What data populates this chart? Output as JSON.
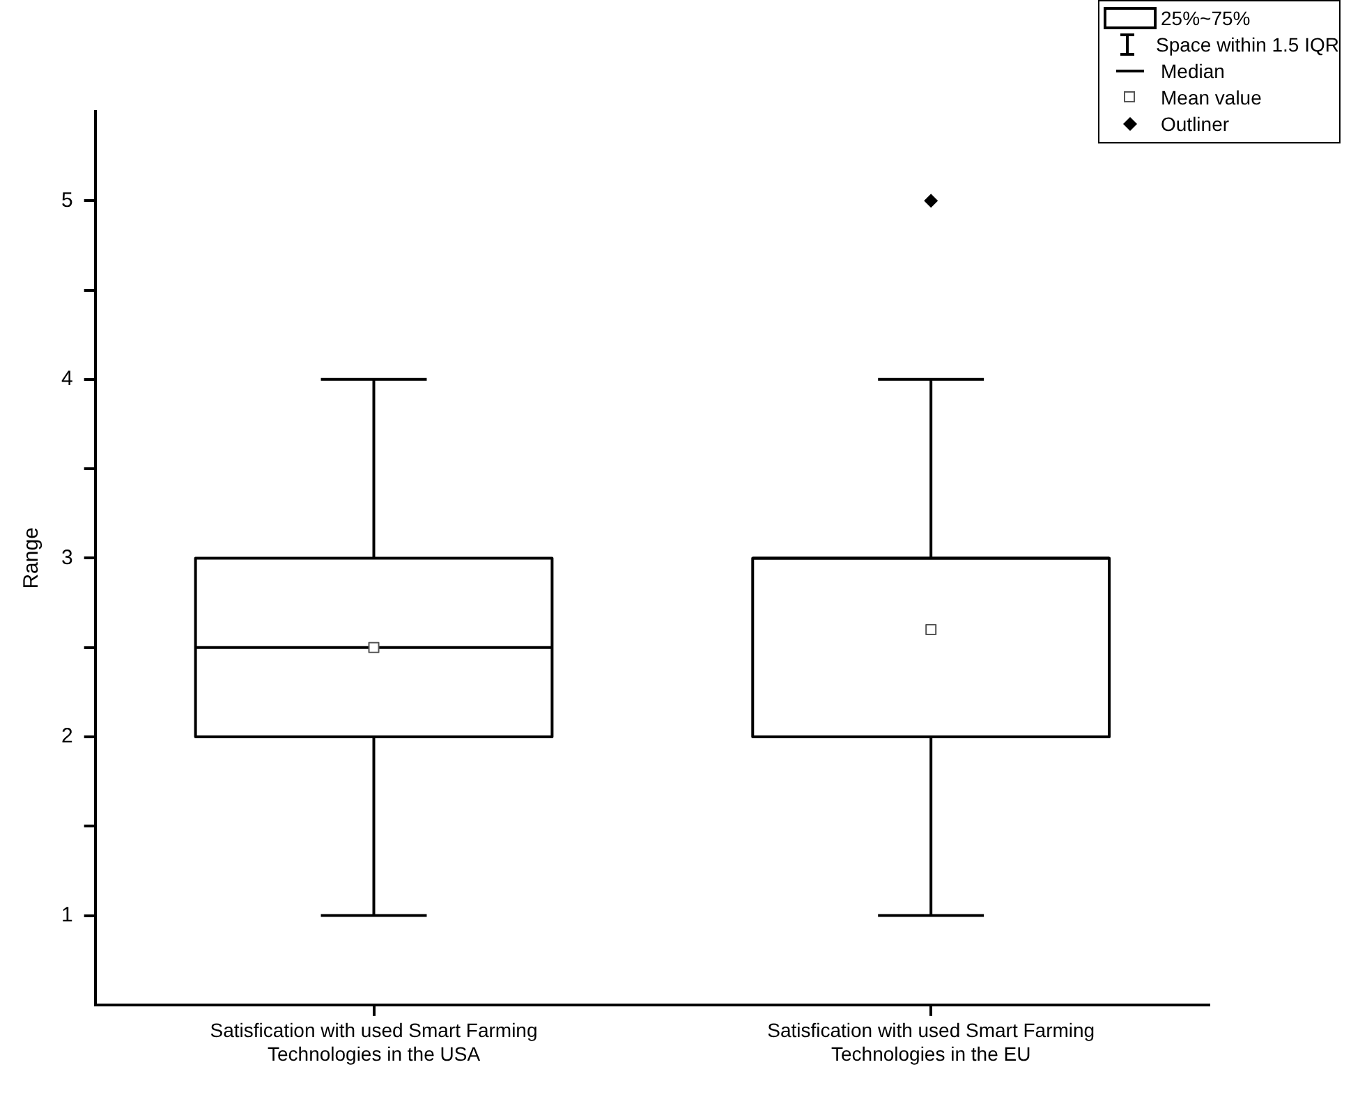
{
  "chart_data": {
    "type": "box",
    "ylabel": "Range",
    "categories": [
      "Satisfication with used Smart Farming Technologies in the USA",
      "Satisfication with used Smart Farming Technologies in the EU"
    ],
    "boxes": [
      {
        "low": 1,
        "q1": 2,
        "median": 2.5,
        "q3": 3,
        "high": 4,
        "mean": 2.5
      },
      {
        "low": 1,
        "q1": 2,
        "median": 3,
        "q3": 3,
        "high": 4,
        "mean": 2.6,
        "outliers": [
          5
        ]
      }
    ],
    "ylim": [
      0.5,
      5.5
    ],
    "yticks": [
      1,
      {
        "value": 1.5,
        "label": null
      },
      2,
      {
        "value": 2.5,
        "label": null
      },
      3,
      {
        "value": 3.5,
        "label": null
      },
      4,
      {
        "value": 4.5,
        "label": null
      },
      5
    ],
    "grid": false,
    "annotations": [
      "25%~75%",
      "Space within 1.5 IQR",
      "Median",
      "Mean value",
      "Outliner"
    ]
  }
}
